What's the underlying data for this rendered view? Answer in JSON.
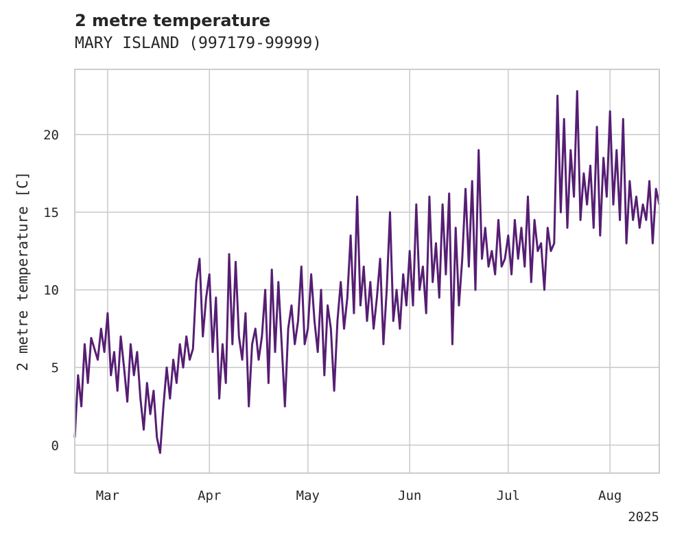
{
  "chart_data": {
    "type": "line",
    "title": "2 metre temperature",
    "subtitle": "MARY ISLAND (997179-99999)",
    "ylabel": "2 metre temperature [C]",
    "xlabel": "",
    "x_year_label": "2025",
    "x_range": [
      "2025-02-19",
      "2025-08-16"
    ],
    "ylim": [
      -1.8,
      24.2
    ],
    "y_ticks": [
      0,
      5,
      10,
      15,
      20
    ],
    "x_ticks": [
      {
        "date": "2025-03-01",
        "label": "Mar"
      },
      {
        "date": "2025-04-01",
        "label": "Apr"
      },
      {
        "date": "2025-05-01",
        "label": "May"
      },
      {
        "date": "2025-06-01",
        "label": "Jun"
      },
      {
        "date": "2025-07-01",
        "label": "Jul"
      },
      {
        "date": "2025-08-01",
        "label": "Aug"
      }
    ],
    "grid": true,
    "line_color": "#561e73",
    "series": [
      {
        "points": [
          [
            "2025-02-19",
            0.5
          ],
          [
            "2025-02-20",
            4.5
          ],
          [
            "2025-02-21",
            2.5
          ],
          [
            "2025-02-22",
            6.5
          ],
          [
            "2025-02-23",
            4.0
          ],
          [
            "2025-02-24",
            6.9
          ],
          [
            "2025-02-25",
            6.2
          ],
          [
            "2025-02-26",
            5.5
          ],
          [
            "2025-02-27",
            7.5
          ],
          [
            "2025-02-28",
            6.0
          ],
          [
            "2025-03-01",
            8.5
          ],
          [
            "2025-03-02",
            4.5
          ],
          [
            "2025-03-03",
            6.0
          ],
          [
            "2025-03-04",
            3.5
          ],
          [
            "2025-03-05",
            7.0
          ],
          [
            "2025-03-06",
            5.0
          ],
          [
            "2025-03-07",
            2.8
          ],
          [
            "2025-03-08",
            6.5
          ],
          [
            "2025-03-09",
            4.5
          ],
          [
            "2025-03-10",
            6.0
          ],
          [
            "2025-03-11",
            3.0
          ],
          [
            "2025-03-12",
            1.0
          ],
          [
            "2025-03-13",
            4.0
          ],
          [
            "2025-03-14",
            2.0
          ],
          [
            "2025-03-15",
            3.5
          ],
          [
            "2025-03-16",
            0.5
          ],
          [
            "2025-03-17",
            -0.5
          ],
          [
            "2025-03-18",
            2.5
          ],
          [
            "2025-03-19",
            5.0
          ],
          [
            "2025-03-20",
            3.0
          ],
          [
            "2025-03-21",
            5.5
          ],
          [
            "2025-03-22",
            4.0
          ],
          [
            "2025-03-23",
            6.5
          ],
          [
            "2025-03-24",
            5.0
          ],
          [
            "2025-03-25",
            7.0
          ],
          [
            "2025-03-26",
            5.5
          ],
          [
            "2025-03-27",
            6.2
          ],
          [
            "2025-03-28",
            10.5
          ],
          [
            "2025-03-29",
            12.0
          ],
          [
            "2025-03-30",
            7.0
          ],
          [
            "2025-03-31",
            9.5
          ],
          [
            "2025-04-01",
            11.0
          ],
          [
            "2025-04-02",
            6.0
          ],
          [
            "2025-04-03",
            9.5
          ],
          [
            "2025-04-04",
            3.0
          ],
          [
            "2025-04-05",
            6.5
          ],
          [
            "2025-04-06",
            4.0
          ],
          [
            "2025-04-07",
            12.3
          ],
          [
            "2025-04-08",
            6.5
          ],
          [
            "2025-04-09",
            11.8
          ],
          [
            "2025-04-10",
            7.0
          ],
          [
            "2025-04-11",
            5.5
          ],
          [
            "2025-04-12",
            8.5
          ],
          [
            "2025-04-13",
            2.5
          ],
          [
            "2025-04-14",
            6.5
          ],
          [
            "2025-04-15",
            7.5
          ],
          [
            "2025-04-16",
            5.5
          ],
          [
            "2025-04-17",
            7.0
          ],
          [
            "2025-04-18",
            10.0
          ],
          [
            "2025-04-19",
            4.0
          ],
          [
            "2025-04-20",
            11.3
          ],
          [
            "2025-04-21",
            6.0
          ],
          [
            "2025-04-22",
            10.5
          ],
          [
            "2025-04-23",
            6.5
          ],
          [
            "2025-04-24",
            2.5
          ],
          [
            "2025-04-25",
            7.5
          ],
          [
            "2025-04-26",
            9.0
          ],
          [
            "2025-04-27",
            6.5
          ],
          [
            "2025-04-28",
            8.0
          ],
          [
            "2025-04-29",
            11.5
          ],
          [
            "2025-04-30",
            6.5
          ],
          [
            "2025-05-01",
            7.5
          ],
          [
            "2025-05-02",
            11.0
          ],
          [
            "2025-05-03",
            8.0
          ],
          [
            "2025-05-04",
            6.0
          ],
          [
            "2025-05-05",
            10.0
          ],
          [
            "2025-05-06",
            4.5
          ],
          [
            "2025-05-07",
            9.0
          ],
          [
            "2025-05-08",
            7.5
          ],
          [
            "2025-05-09",
            3.5
          ],
          [
            "2025-05-10",
            8.0
          ],
          [
            "2025-05-11",
            10.5
          ],
          [
            "2025-05-12",
            7.5
          ],
          [
            "2025-05-13",
            9.5
          ],
          [
            "2025-05-14",
            13.5
          ],
          [
            "2025-05-15",
            8.5
          ],
          [
            "2025-05-16",
            16.0
          ],
          [
            "2025-05-17",
            9.0
          ],
          [
            "2025-05-18",
            11.5
          ],
          [
            "2025-05-19",
            8.0
          ],
          [
            "2025-05-20",
            10.5
          ],
          [
            "2025-05-21",
            7.5
          ],
          [
            "2025-05-22",
            9.5
          ],
          [
            "2025-05-23",
            12.0
          ],
          [
            "2025-05-24",
            6.5
          ],
          [
            "2025-05-25",
            10.0
          ],
          [
            "2025-05-26",
            15.0
          ],
          [
            "2025-05-27",
            8.0
          ],
          [
            "2025-05-28",
            10.0
          ],
          [
            "2025-05-29",
            7.5
          ],
          [
            "2025-05-30",
            11.0
          ],
          [
            "2025-05-31",
            9.0
          ],
          [
            "2025-06-01",
            12.5
          ],
          [
            "2025-06-02",
            9.0
          ],
          [
            "2025-06-03",
            15.5
          ],
          [
            "2025-06-04",
            10.0
          ],
          [
            "2025-06-05",
            11.5
          ],
          [
            "2025-06-06",
            8.5
          ],
          [
            "2025-06-07",
            16.0
          ],
          [
            "2025-06-08",
            10.5
          ],
          [
            "2025-06-09",
            13.0
          ],
          [
            "2025-06-10",
            9.5
          ],
          [
            "2025-06-11",
            15.5
          ],
          [
            "2025-06-12",
            11.0
          ],
          [
            "2025-06-13",
            16.2
          ],
          [
            "2025-06-14",
            6.5
          ],
          [
            "2025-06-15",
            14.0
          ],
          [
            "2025-06-16",
            9.0
          ],
          [
            "2025-06-17",
            12.0
          ],
          [
            "2025-06-18",
            16.5
          ],
          [
            "2025-06-19",
            11.5
          ],
          [
            "2025-06-20",
            17.0
          ],
          [
            "2025-06-21",
            10.0
          ],
          [
            "2025-06-22",
            19.0
          ],
          [
            "2025-06-23",
            12.0
          ],
          [
            "2025-06-24",
            14.0
          ],
          [
            "2025-06-25",
            11.5
          ],
          [
            "2025-06-26",
            12.5
          ],
          [
            "2025-06-27",
            11.0
          ],
          [
            "2025-06-28",
            14.5
          ],
          [
            "2025-06-29",
            11.5
          ],
          [
            "2025-06-30",
            12.0
          ],
          [
            "2025-07-01",
            13.5
          ],
          [
            "2025-07-02",
            11.0
          ],
          [
            "2025-07-03",
            14.5
          ],
          [
            "2025-07-04",
            12.0
          ],
          [
            "2025-07-05",
            14.0
          ],
          [
            "2025-07-06",
            11.5
          ],
          [
            "2025-07-07",
            16.0
          ],
          [
            "2025-07-08",
            10.5
          ],
          [
            "2025-07-09",
            14.5
          ],
          [
            "2025-07-10",
            12.5
          ],
          [
            "2025-07-11",
            13.0
          ],
          [
            "2025-07-12",
            10.0
          ],
          [
            "2025-07-13",
            14.0
          ],
          [
            "2025-07-14",
            12.5
          ],
          [
            "2025-07-15",
            13.0
          ],
          [
            "2025-07-16",
            22.5
          ],
          [
            "2025-07-17",
            15.0
          ],
          [
            "2025-07-18",
            21.0
          ],
          [
            "2025-07-19",
            14.0
          ],
          [
            "2025-07-20",
            19.0
          ],
          [
            "2025-07-21",
            16.0
          ],
          [
            "2025-07-22",
            22.8
          ],
          [
            "2025-07-23",
            14.5
          ],
          [
            "2025-07-24",
            17.5
          ],
          [
            "2025-07-25",
            15.5
          ],
          [
            "2025-07-26",
            18.0
          ],
          [
            "2025-07-27",
            14.0
          ],
          [
            "2025-07-28",
            20.5
          ],
          [
            "2025-07-29",
            13.5
          ],
          [
            "2025-07-30",
            18.5
          ],
          [
            "2025-07-31",
            16.0
          ],
          [
            "2025-08-01",
            21.5
          ],
          [
            "2025-08-02",
            15.5
          ],
          [
            "2025-08-03",
            19.0
          ],
          [
            "2025-08-04",
            14.5
          ],
          [
            "2025-08-05",
            21.0
          ],
          [
            "2025-08-06",
            13.0
          ],
          [
            "2025-08-07",
            17.0
          ],
          [
            "2025-08-08",
            14.5
          ],
          [
            "2025-08-09",
            16.0
          ],
          [
            "2025-08-10",
            14.0
          ],
          [
            "2025-08-11",
            15.5
          ],
          [
            "2025-08-12",
            14.5
          ],
          [
            "2025-08-13",
            17.0
          ],
          [
            "2025-08-14",
            13.0
          ],
          [
            "2025-08-15",
            16.5
          ],
          [
            "2025-08-16",
            15.5
          ]
        ]
      }
    ]
  }
}
